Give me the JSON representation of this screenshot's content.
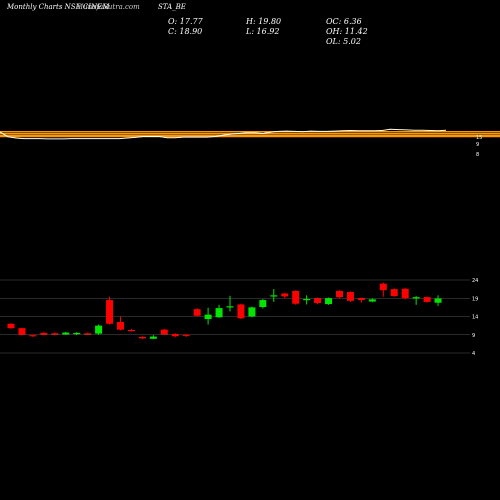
{
  "header": {
    "title": "Monthly Charts NSE CINEM",
    "watermark": "MunafaSutra.com",
    "symbol": "STA_BE"
  },
  "ohlc": {
    "open": "O: 17.77",
    "close": "C: 18.90",
    "high": "H: 19.80",
    "low": "L: 16.92",
    "oc": "OC: 6.36",
    "oh": "OH: 11.42",
    "ol": "OL: 5.02"
  },
  "colors": {
    "up": "#00e600",
    "down": "#ff0000",
    "ma_white": "#ffffff",
    "ma_orange": "#ff9900",
    "grid": "#555555"
  },
  "chart_data": {
    "type": "candlestick",
    "yticks": [
      24,
      19,
      14,
      9,
      4
    ],
    "ylim": [
      4,
      24
    ],
    "upper_panel_labels": [
      "15",
      "9",
      "8"
    ],
    "orange_levels": [
      0.45,
      0.48,
      0.54,
      0.61
    ],
    "ma_line": [
      0.6,
      0.44,
      0.4,
      0.38,
      0.38,
      0.38,
      0.37,
      0.37,
      0.37,
      0.38,
      0.38,
      0.38,
      0.38,
      0.38,
      0.38,
      0.38,
      0.4,
      0.42,
      0.45,
      0.45,
      0.45,
      0.41,
      0.41,
      0.43,
      0.43,
      0.43,
      0.43,
      0.45,
      0.49,
      0.53,
      0.55,
      0.57,
      0.57,
      0.55,
      0.59,
      0.62,
      0.63,
      0.62,
      0.61,
      0.63,
      0.62,
      0.62,
      0.63,
      0.64,
      0.65,
      0.64,
      0.64,
      0.64,
      0.65,
      0.69,
      0.68,
      0.67,
      0.66,
      0.66,
      0.65,
      0.64,
      0.66
    ],
    "candles": [
      {
        "o": 12.0,
        "h": 12.2,
        "l": 10.6,
        "c": 10.8
      },
      {
        "o": 10.8,
        "h": 10.9,
        "l": 8.8,
        "c": 9.0
      },
      {
        "o": 8.9,
        "h": 9.1,
        "l": 8.4,
        "c": 8.6
      },
      {
        "o": 9.5,
        "h": 9.8,
        "l": 8.9,
        "c": 9.0
      },
      {
        "o": 9.4,
        "h": 9.6,
        "l": 8.8,
        "c": 9.1
      },
      {
        "o": 9.1,
        "h": 9.8,
        "l": 9.0,
        "c": 9.6
      },
      {
        "o": 9.2,
        "h": 9.7,
        "l": 8.9,
        "c": 9.5
      },
      {
        "o": 9.4,
        "h": 9.6,
        "l": 9.0,
        "c": 9.2
      },
      {
        "o": 9.3,
        "h": 11.8,
        "l": 9.0,
        "c": 11.5
      },
      {
        "o": 18.5,
        "h": 19.4,
        "l": 11.8,
        "c": 12.0
      },
      {
        "o": 12.5,
        "h": 14.0,
        "l": 10.2,
        "c": 10.4
      },
      {
        "o": 10.3,
        "h": 10.6,
        "l": 9.9,
        "c": 10.2
      },
      {
        "o": 8.4,
        "h": 8.6,
        "l": 7.8,
        "c": 8.0
      },
      {
        "o": 7.9,
        "h": 8.9,
        "l": 7.8,
        "c": 8.5
      },
      {
        "o": 10.4,
        "h": 10.6,
        "l": 8.9,
        "c": 9.1
      },
      {
        "o": 9.2,
        "h": 9.4,
        "l": 8.3,
        "c": 8.6
      },
      {
        "o": 9.0,
        "h": 9.2,
        "l": 8.4,
        "c": 8.7
      },
      {
        "o": 16.0,
        "h": 16.3,
        "l": 14.0,
        "c": 14.2
      },
      {
        "o": 13.3,
        "h": 16.4,
        "l": 11.8,
        "c": 14.5
      },
      {
        "o": 13.8,
        "h": 17.2,
        "l": 13.6,
        "c": 16.3
      },
      {
        "o": 16.6,
        "h": 19.7,
        "l": 15.4,
        "c": 16.8
      },
      {
        "o": 17.3,
        "h": 17.5,
        "l": 13.3,
        "c": 13.5
      },
      {
        "o": 14.0,
        "h": 16.7,
        "l": 13.8,
        "c": 16.5
      },
      {
        "o": 16.6,
        "h": 18.8,
        "l": 16.2,
        "c": 18.5
      },
      {
        "o": 19.5,
        "h": 21.5,
        "l": 18.0,
        "c": 19.8
      },
      {
        "o": 20.3,
        "h": 20.5,
        "l": 19.0,
        "c": 19.5
      },
      {
        "o": 21.0,
        "h": 21.2,
        "l": 17.2,
        "c": 17.5
      },
      {
        "o": 18.5,
        "h": 19.8,
        "l": 17.3,
        "c": 18.8
      },
      {
        "o": 19.0,
        "h": 19.2,
        "l": 17.4,
        "c": 17.7
      },
      {
        "o": 17.4,
        "h": 19.2,
        "l": 17.2,
        "c": 19.0
      },
      {
        "o": 21.0,
        "h": 21.2,
        "l": 19.0,
        "c": 19.3
      },
      {
        "o": 20.7,
        "h": 20.9,
        "l": 18.0,
        "c": 18.3
      },
      {
        "o": 19.0,
        "h": 19.2,
        "l": 17.8,
        "c": 18.5
      },
      {
        "o": 18.1,
        "h": 18.9,
        "l": 17.9,
        "c": 18.7
      },
      {
        "o": 23.0,
        "h": 23.3,
        "l": 19.4,
        "c": 21.2
      },
      {
        "o": 21.5,
        "h": 21.7,
        "l": 19.4,
        "c": 19.6
      },
      {
        "o": 21.6,
        "h": 21.8,
        "l": 18.7,
        "c": 19.0
      },
      {
        "o": 18.9,
        "h": 19.6,
        "l": 17.2,
        "c": 19.3
      },
      {
        "o": 19.3,
        "h": 19.5,
        "l": 17.8,
        "c": 18.0
      },
      {
        "o": 17.77,
        "h": 19.8,
        "l": 16.92,
        "c": 18.9
      }
    ]
  }
}
